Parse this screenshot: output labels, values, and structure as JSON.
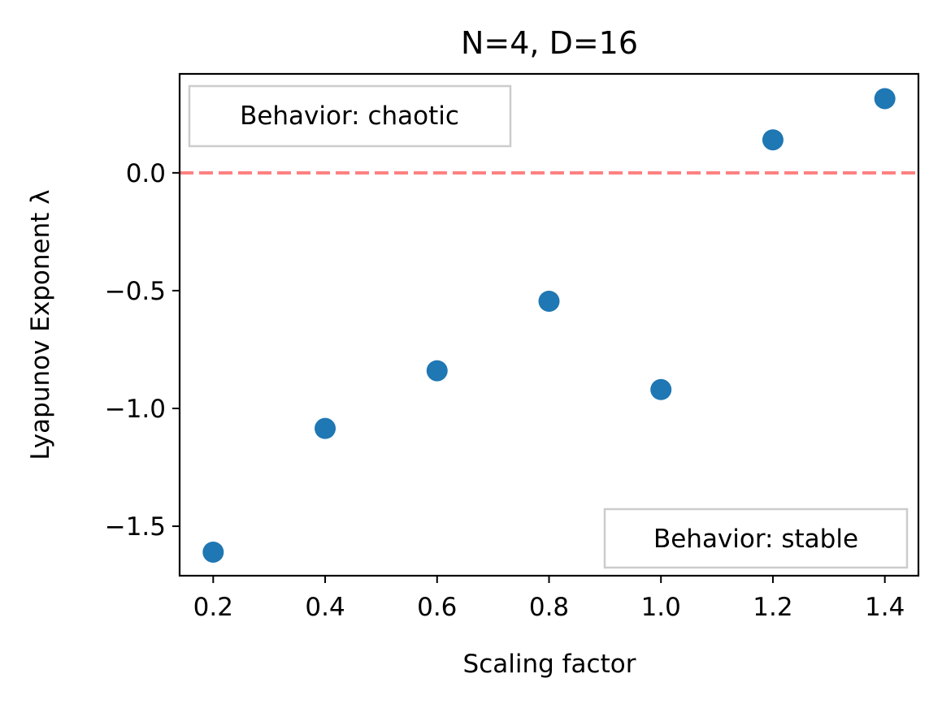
{
  "chart_data": {
    "type": "scatter",
    "title": "N=4, D=16",
    "xlabel": "Scaling factor",
    "ylabel": "Lyapunov Exponent λ",
    "xlim": [
      0.14,
      1.46
    ],
    "ylim": [
      -1.71,
      0.42
    ],
    "xticks": [
      0.2,
      0.4,
      0.6,
      0.8,
      1.0,
      1.2,
      1.4
    ],
    "xtick_labels": [
      "0.2",
      "0.4",
      "0.6",
      "0.8",
      "1.0",
      "1.2",
      "1.4"
    ],
    "yticks": [
      0.0,
      -0.5,
      -1.0,
      -1.5
    ],
    "ytick_labels": [
      "0.0",
      "−0.5",
      "−1.0",
      "−1.5"
    ],
    "grid": false,
    "series": [
      {
        "x": [
          0.2,
          0.4,
          0.6,
          0.8,
          1.0,
          1.2,
          1.4
        ],
        "y": [
          -1.61,
          -1.085,
          -0.84,
          -0.545,
          -0.92,
          0.14,
          0.315
        ],
        "color": "#1f77b4"
      }
    ],
    "reference_line": {
      "y": 0.0,
      "color": "#ff7f7f",
      "style": "dashed"
    },
    "annotations": [
      {
        "text": "Behavior: chaotic",
        "position": "top-left"
      },
      {
        "text": "Behavior: stable",
        "position": "bottom-right"
      }
    ]
  }
}
